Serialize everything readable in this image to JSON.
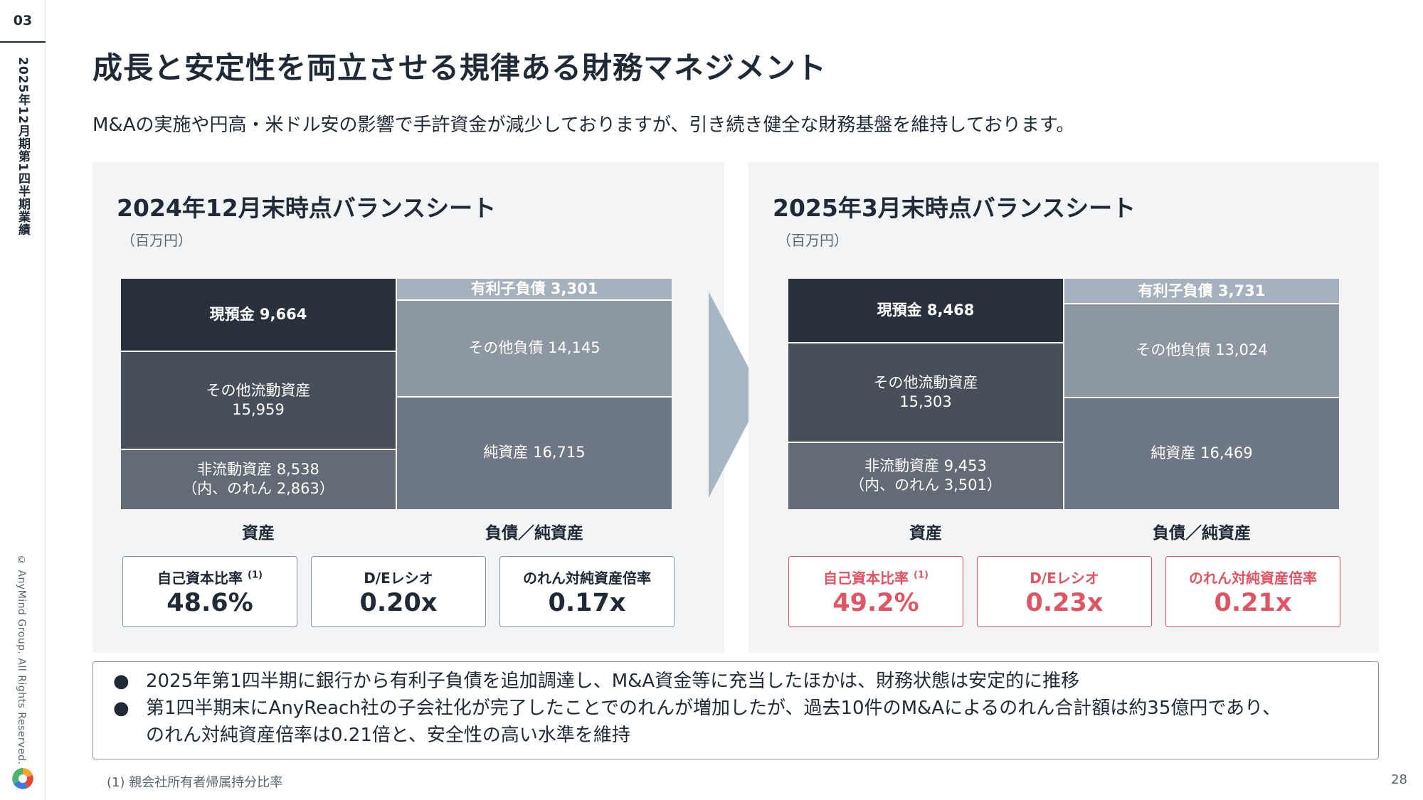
{
  "rail": {
    "section_number": "03",
    "title": "2025年12月期第1四半期業績",
    "copyright": "© AnyMind Group. All Rights Reserved."
  },
  "header": {
    "title": "成長と安定性を両立させる規律ある財務マネジメント",
    "subtitle": "M&Aの実施や円高・米ドル安の影響で手許資金が減少しておりますが、引き続き健全な財務基盤を維持しております。"
  },
  "left_panel": {
    "title": "2024年12月末時点バランスシート",
    "unit": "（百万円）",
    "assets": [
      {
        "label": "現預金 9,664"
      },
      {
        "label_line1": "その他流動資産",
        "label_line2": "15,959"
      },
      {
        "label_line1": "非流動資産 8,538",
        "label_line2": "（内、のれん 2,863）"
      }
    ],
    "liabilities": [
      {
        "label": "有利子負債 3,301"
      },
      {
        "label": "その他負債 14,145"
      },
      {
        "label": "純資産 16,715"
      }
    ],
    "axis_assets": "資産",
    "axis_liabilities": "負債／純資産",
    "kpis": [
      {
        "label": "自己資本比率",
        "sup": "(1)",
        "value": "48.6%"
      },
      {
        "label": "D/Eレシオ",
        "value": "0.20x"
      },
      {
        "label": "のれん対純資産倍率",
        "value": "0.17x"
      }
    ]
  },
  "right_panel": {
    "title": "2025年3月末時点バランスシート",
    "unit": "（百万円）",
    "assets": [
      {
        "label": "現預金 8,468"
      },
      {
        "label_line1": "その他流動資産",
        "label_line2": "15,303"
      },
      {
        "label_line1": "非流動資産 9,453",
        "label_line2": "（内、のれん 3,501）"
      }
    ],
    "liabilities": [
      {
        "label": "有利子負債 3,731"
      },
      {
        "label": "その他負債 13,024"
      },
      {
        "label": "純資産 16,469"
      }
    ],
    "axis_assets": "資産",
    "axis_liabilities": "負債／純資産",
    "kpis": [
      {
        "label": "自己資本比率",
        "sup": "(1)",
        "value": "49.2%"
      },
      {
        "label": "D/Eレシオ",
        "value": "0.23x"
      },
      {
        "label": "のれん対純資産倍率",
        "value": "0.21x"
      }
    ]
  },
  "notes": {
    "bullet": "●",
    "items": [
      {
        "line1": "2025年第1四半期に銀行から有利子負債を追加調達し、M&A資金等に充当したほかは、財務状態は安定的に推移",
        "line2": ""
      },
      {
        "line1": "第1四半期末にAnyReach社の子会社化が完了したことでのれんが増加したが、過去10件のM&Aによるのれん合計額は約35億円であり、",
        "line2": "のれん対純資産倍率は0.21倍と、安全性の高い水準を維持"
      }
    ]
  },
  "footnote": "(1) 親会社所有者帰属持分比率",
  "page_number": "28",
  "colors": {
    "accent_red": "#e05563",
    "cash": "#27303b",
    "other_current": "#464f5a",
    "non_current": "#626b76",
    "interest_debt": "#a5b1bc",
    "other_liab": "#8d97a2",
    "equity": "#6d7884"
  }
}
